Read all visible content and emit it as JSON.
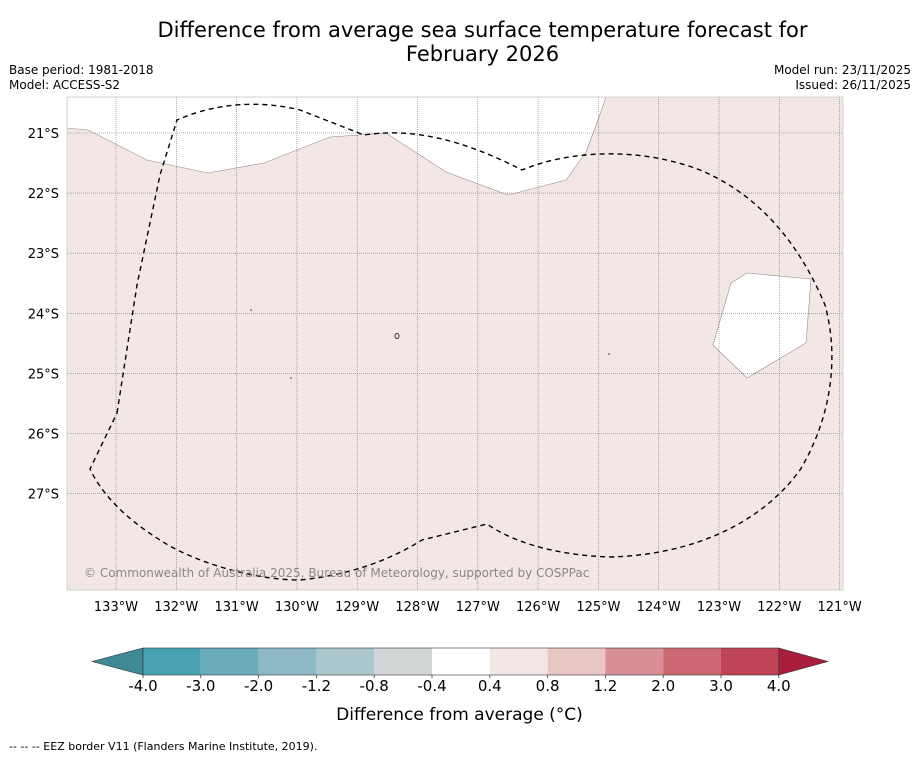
{
  "header": {
    "title_line1": "Difference from average sea surface temperature forecast for",
    "title_line2": "February 2026",
    "base_period": "Base period: 1981-2018",
    "model": "Model: ACCESS-S2",
    "model_run": "Model run: 23/11/2025",
    "issued": "Issued: 26/11/2025"
  },
  "map": {
    "lat_labels": [
      "21°S",
      "22°S",
      "23°S",
      "24°S",
      "25°S",
      "26°S",
      "27°S"
    ],
    "lon_labels": [
      "133°W",
      "132°W",
      "131°W",
      "130°W",
      "129°W",
      "128°W",
      "127°W",
      "126°W",
      "125°W",
      "124°W",
      "123°W",
      "122°W",
      "121°W"
    ],
    "copyright": "© Commonwealth of Australia 2025, Bureau of Meteorology, supported by COSPPac",
    "ocean_fill_color": "#f3e7e6",
    "neutral_fill_color": "#ffffff"
  },
  "colorbar": {
    "tick_labels": [
      "-4.0",
      "-3.0",
      "-2.0",
      "-1.2",
      "-0.8",
      "-0.4",
      "0.4",
      "0.8",
      "1.2",
      "2.0",
      "3.0",
      "4.0"
    ],
    "colors": [
      "#3f8a95",
      "#47a1b1",
      "#6bacbb",
      "#8db8c4",
      "#aac8cd",
      "#d2d6d7",
      "#ffffff",
      "#f3e7e6",
      "#e7c6c3",
      "#d78e95",
      "#cb6872",
      "#bf4456",
      "#a81e3c"
    ],
    "label": "Difference from average (°C)"
  },
  "footer": {
    "eez_note": "--  --  -- EEZ border V11 (Flanders Marine Institute, 2019)."
  }
}
